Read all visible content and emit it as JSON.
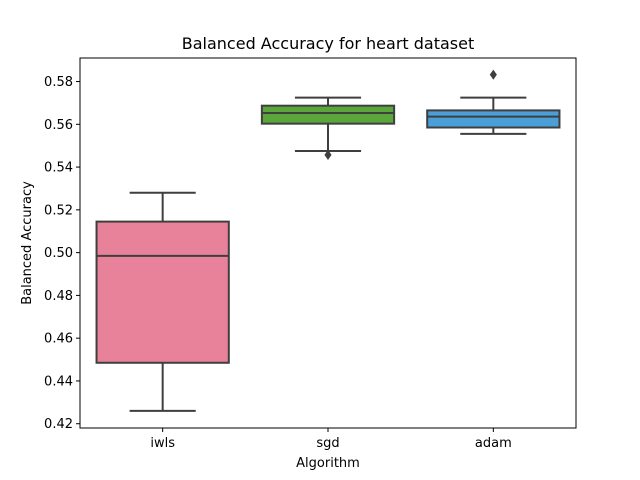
{
  "chart_data": {
    "type": "box",
    "title": "Balanced Accuracy for heart dataset",
    "xlabel": "Algorithm",
    "ylabel": "Balanced Accuracy",
    "ylim": [
      0.418,
      0.591
    ],
    "yticks": [
      0.42,
      0.44,
      0.46,
      0.48,
      0.5,
      0.52,
      0.54,
      0.56,
      0.58
    ],
    "ytick_labels": [
      "0.42",
      "0.44",
      "0.46",
      "0.48",
      "0.50",
      "0.52",
      "0.54",
      "0.56",
      "0.58"
    ],
    "grid": false,
    "legend": "none",
    "categories": [
      "iwls",
      "sgd",
      "adam"
    ],
    "series": [
      {
        "category": "iwls",
        "color": "#e8829a",
        "whisker_low": 0.426,
        "q1": 0.4485,
        "median": 0.4985,
        "q3": 0.5145,
        "whisker_high": 0.528,
        "outliers": []
      },
      {
        "category": "sgd",
        "color": "#5aa63a",
        "whisker_low": 0.5475,
        "q1": 0.5603,
        "median": 0.5653,
        "q3": 0.5687,
        "whisker_high": 0.5725,
        "outliers": [
          0.5457
        ]
      },
      {
        "category": "adam",
        "color": "#4a9fd8",
        "whisker_low": 0.5555,
        "q1": 0.5585,
        "median": 0.5636,
        "q3": 0.5665,
        "whisker_high": 0.5725,
        "outliers": [
          0.5832
        ]
      }
    ]
  }
}
